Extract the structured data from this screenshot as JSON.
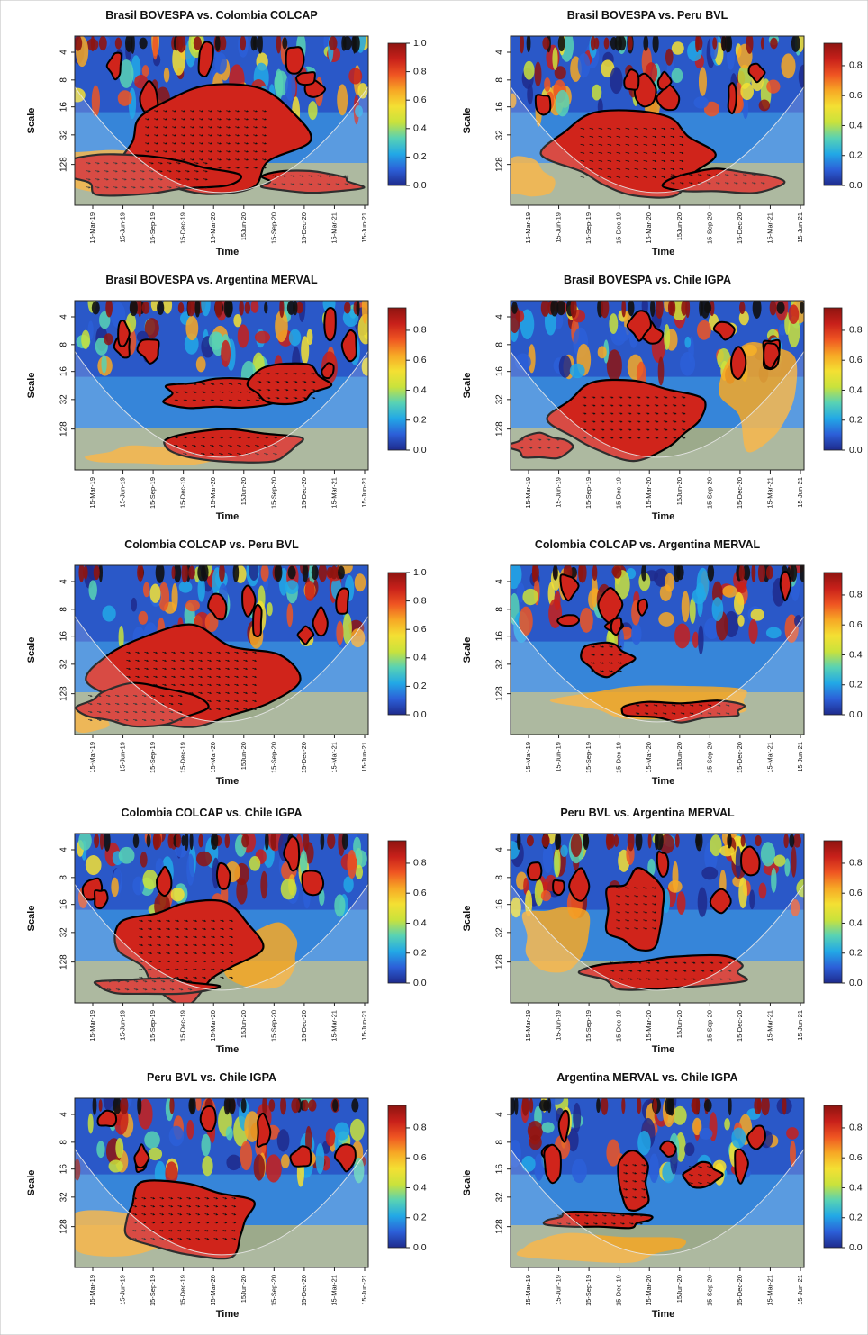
{
  "figure": {
    "background": "#ffffff"
  },
  "common": {
    "ylabel": "Scale",
    "xlabel": "Time",
    "y_ticks": [
      "4",
      "8",
      "16",
      "32",
      "128"
    ],
    "x_ticks": [
      "15-Mar-19",
      "15-Jun-19",
      "15-Sep-19",
      "15-Dec-19",
      "15-Mar-20",
      "15Jun-20",
      "15-Sep-20",
      "15-Dec-20",
      "15-Mar-21",
      "15-Jun-21"
    ],
    "colorscale": [
      "#1e2a8c",
      "#2c5fd8",
      "#22a8e6",
      "#58d2b4",
      "#c9e23c",
      "#f4e033",
      "#f7a825",
      "#ef5522",
      "#c8201a",
      "#8e1410"
    ]
  },
  "chart_data": [
    {
      "type": "heatmap",
      "title": "Brasil BOVESPA vs. Colombia COLCAP",
      "colorbar_ticks": [
        "0.0",
        "0.2",
        "0.4",
        "0.6",
        "0.8",
        "1.0"
      ]
    },
    {
      "type": "heatmap",
      "title": "Brasil BOVESPA vs. Peru BVL",
      "colorbar_ticks": [
        "0.0",
        "0.2",
        "0.4",
        "0.6",
        "0.8"
      ]
    },
    {
      "type": "heatmap",
      "title": "Brasil BOVESPA vs. Argentina MERVAL",
      "colorbar_ticks": [
        "0.0",
        "0.2",
        "0.4",
        "0.6",
        "0.8"
      ]
    },
    {
      "type": "heatmap",
      "title": "Brasil BOVESPA vs. Chile IGPA",
      "colorbar_ticks": [
        "0.0",
        "0.2",
        "0.4",
        "0.6",
        "0.8"
      ]
    },
    {
      "type": "heatmap",
      "title": "Colombia COLCAP vs. Peru BVL",
      "colorbar_ticks": [
        "0.0",
        "0.2",
        "0.4",
        "0.6",
        "0.8",
        "1.0"
      ]
    },
    {
      "type": "heatmap",
      "title": "Colombia COLCAP vs. Argentina MERVAL",
      "colorbar_ticks": [
        "0.0",
        "0.2",
        "0.4",
        "0.6",
        "0.8"
      ]
    },
    {
      "type": "heatmap",
      "title": "Colombia COLCAP vs. Chile IGPA",
      "colorbar_ticks": [
        "0.0",
        "0.2",
        "0.4",
        "0.6",
        "0.8"
      ]
    },
    {
      "type": "heatmap",
      "title": "Peru BVL vs. Argentina MERVAL",
      "colorbar_ticks": [
        "0.0",
        "0.2",
        "0.4",
        "0.6",
        "0.8"
      ]
    },
    {
      "type": "heatmap",
      "title": "Peru BVL vs. Chile IGPA",
      "colorbar_ticks": [
        "0.0",
        "0.2",
        "0.4",
        "0.6",
        "0.8"
      ]
    },
    {
      "type": "heatmap",
      "title": "Argentina MERVAL vs. Chile IGPA",
      "colorbar_ticks": [
        "0.0",
        "0.2",
        "0.4",
        "0.6",
        "0.8"
      ]
    }
  ]
}
